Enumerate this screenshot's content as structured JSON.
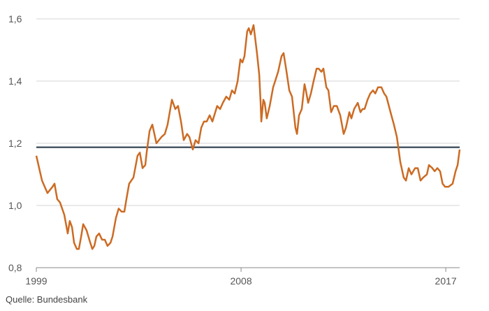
{
  "chart_data": {
    "type": "line",
    "source": "Quelle: Bundesbank",
    "x": [
      1999.0,
      1999.25,
      1999.49,
      1999.71,
      1999.8,
      1999.92,
      2000.04,
      2000.23,
      2000.38,
      2000.47,
      2000.57,
      2000.66,
      2000.78,
      2000.87,
      2000.97,
      2001.06,
      2001.21,
      2001.33,
      2001.46,
      2001.55,
      2001.64,
      2001.76,
      2001.89,
      2002.01,
      2002.13,
      2002.26,
      2002.35,
      2002.5,
      2002.62,
      2002.75,
      2002.87,
      2002.96,
      2003.08,
      2003.27,
      2003.45,
      2003.55,
      2003.67,
      2003.79,
      2003.85,
      2003.98,
      2004.1,
      2004.28,
      2004.5,
      2004.65,
      2004.77,
      2004.96,
      2005.11,
      2005.23,
      2005.36,
      2005.48,
      2005.63,
      2005.73,
      2005.88,
      2006.0,
      2006.13,
      2006.25,
      2006.37,
      2006.49,
      2006.62,
      2006.74,
      2006.95,
      2007.08,
      2007.2,
      2007.35,
      2007.48,
      2007.6,
      2007.72,
      2007.85,
      2007.97,
      2008.06,
      2008.15,
      2008.27,
      2008.34,
      2008.43,
      2008.55,
      2008.7,
      2008.8,
      2008.86,
      2008.89,
      2008.98,
      2009.04,
      2009.13,
      2009.26,
      2009.41,
      2009.5,
      2009.63,
      2009.78,
      2009.87,
      2010.0,
      2010.12,
      2010.24,
      2010.39,
      2010.46,
      2010.55,
      2010.67,
      2010.79,
      2010.85,
      2010.95,
      2011.07,
      2011.19,
      2011.32,
      2011.41,
      2011.53,
      2011.62,
      2011.75,
      2011.84,
      2011.96,
      2012.08,
      2012.21,
      2012.36,
      2012.51,
      2012.61,
      2012.76,
      2012.85,
      2012.97,
      2013.13,
      2013.25,
      2013.34,
      2013.43,
      2013.56,
      2013.68,
      2013.8,
      2013.9,
      2014.02,
      2014.17,
      2014.29,
      2014.39,
      2014.57,
      2014.72,
      2014.85,
      2015.0,
      2015.15,
      2015.25,
      2015.37,
      2015.49,
      2015.65,
      2015.77,
      2015.89,
      2016.01,
      2016.17,
      2016.26,
      2016.41,
      2016.51,
      2016.63,
      2016.75,
      2016.86,
      2016.97,
      2017.12,
      2017.3,
      2017.43,
      2017.52,
      2017.61
    ],
    "series": [
      {
        "color": "#cc6b23",
        "values": [
          1.16,
          1.08,
          1.04,
          1.06,
          1.07,
          1.02,
          1.01,
          0.97,
          0.91,
          0.95,
          0.93,
          0.88,
          0.86,
          0.86,
          0.9,
          0.94,
          0.92,
          0.89,
          0.86,
          0.87,
          0.9,
          0.91,
          0.89,
          0.89,
          0.87,
          0.88,
          0.9,
          0.96,
          0.99,
          0.98,
          0.98,
          1.02,
          1.07,
          1.09,
          1.16,
          1.17,
          1.12,
          1.13,
          1.17,
          1.24,
          1.26,
          1.2,
          1.22,
          1.23,
          1.26,
          1.34,
          1.31,
          1.32,
          1.27,
          1.21,
          1.23,
          1.22,
          1.18,
          1.21,
          1.2,
          1.25,
          1.27,
          1.27,
          1.29,
          1.27,
          1.32,
          1.31,
          1.33,
          1.35,
          1.34,
          1.37,
          1.36,
          1.4,
          1.47,
          1.46,
          1.48,
          1.56,
          1.57,
          1.55,
          1.58,
          1.49,
          1.42,
          1.33,
          1.27,
          1.34,
          1.33,
          1.28,
          1.32,
          1.38,
          1.4,
          1.43,
          1.48,
          1.49,
          1.43,
          1.37,
          1.35,
          1.25,
          1.23,
          1.29,
          1.31,
          1.39,
          1.37,
          1.33,
          1.36,
          1.4,
          1.44,
          1.44,
          1.43,
          1.44,
          1.38,
          1.37,
          1.3,
          1.32,
          1.32,
          1.29,
          1.23,
          1.25,
          1.3,
          1.28,
          1.31,
          1.33,
          1.3,
          1.31,
          1.31,
          1.34,
          1.36,
          1.37,
          1.36,
          1.38,
          1.38,
          1.36,
          1.35,
          1.3,
          1.26,
          1.22,
          1.14,
          1.09,
          1.08,
          1.12,
          1.1,
          1.12,
          1.12,
          1.08,
          1.09,
          1.1,
          1.13,
          1.12,
          1.11,
          1.12,
          1.11,
          1.07,
          1.06,
          1.06,
          1.07,
          1.11,
          1.13,
          1.18
        ]
      }
    ],
    "reference_line": {
      "value": 1.187,
      "color": "#4a5866"
    },
    "xlim": [
      1999,
      2017.61
    ],
    "xticks": [
      1999,
      2008,
      2017
    ],
    "ylim": [
      0.8,
      1.6
    ],
    "yticks": [
      {
        "value": 0.8,
        "label": "0,8"
      },
      {
        "value": 1.0,
        "label": "1,0"
      },
      {
        "value": 1.2,
        "label": "1,2"
      },
      {
        "value": 1.4,
        "label": "1,4"
      },
      {
        "value": 1.6,
        "label": "1,6"
      }
    ],
    "grid": true
  }
}
